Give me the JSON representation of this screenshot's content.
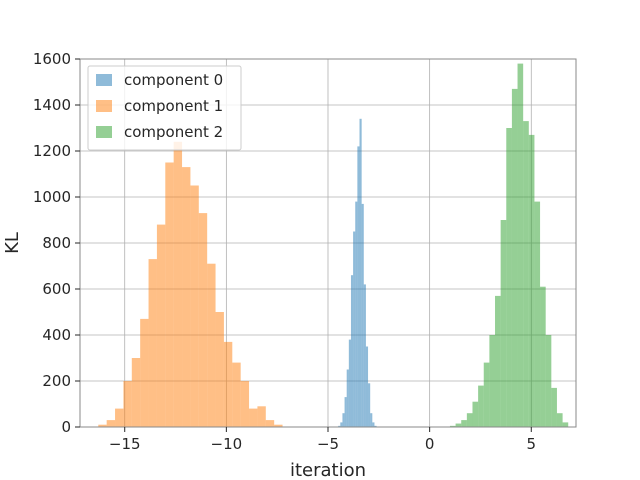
{
  "chart_data": {
    "type": "bar",
    "title": "",
    "xlabel": "iteration",
    "ylabel": "KL",
    "xlim": [
      -17.2,
      7.2
    ],
    "ylim": [
      0,
      1600
    ],
    "xticks": [
      -15,
      -10,
      -5,
      0,
      5
    ],
    "xtick_labels": [
      "−15",
      "−10",
      "−5",
      "0",
      "5"
    ],
    "yticks": [
      0,
      200,
      400,
      600,
      800,
      1000,
      1200,
      1400,
      1600
    ],
    "ytick_labels": [
      "0",
      "200",
      "400",
      "600",
      "800",
      "1000",
      "1200",
      "1400",
      "1600"
    ],
    "grid": true,
    "legend_position": "top-left",
    "series": [
      {
        "name": "component 2",
        "color": "#2ca02c",
        "bin_width": 0.277,
        "x_start": 1.0,
        "values": [
          5,
          15,
          30,
          60,
          110,
          180,
          280,
          400,
          570,
          900,
          1300,
          1470,
          1580,
          1330,
          1270,
          980,
          610,
          400,
          170,
          60,
          20
        ]
      },
      {
        "name": "component 1",
        "color": "#ff7f0e",
        "bin_width": 0.412,
        "x_start": -16.3,
        "values": [
          10,
          30,
          80,
          200,
          300,
          470,
          730,
          880,
          1150,
          1240,
          1130,
          1050,
          930,
          710,
          500,
          370,
          280,
          200,
          80,
          90,
          30,
          10
        ]
      },
      {
        "name": "component 0",
        "color": "#1f77b4",
        "bin_width": 0.105,
        "x_start": -4.5,
        "values": [
          5,
          20,
          60,
          130,
          250,
          380,
          660,
          850,
          980,
          1220,
          1340,
          970,
          620,
          350,
          190,
          60,
          20,
          5
        ]
      }
    ],
    "legend_order": [
      "component 0",
      "component 1",
      "component 2"
    ]
  }
}
